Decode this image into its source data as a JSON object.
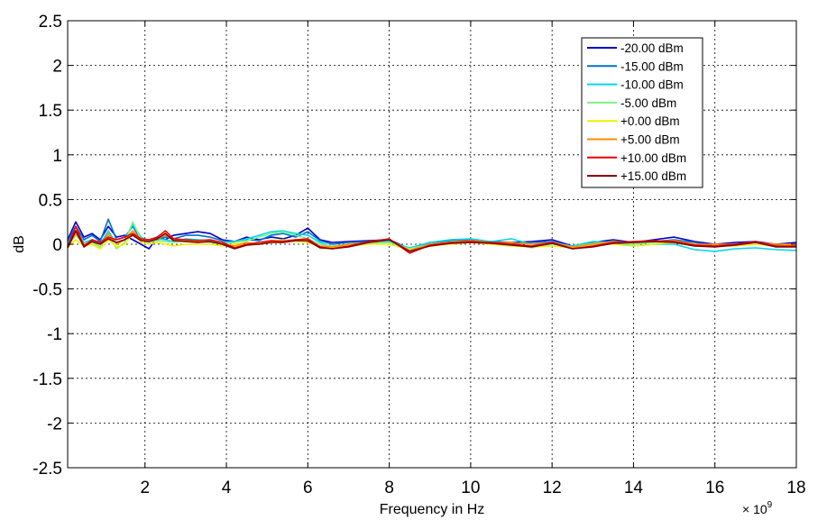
{
  "chart_data": {
    "type": "line",
    "xlabel": "Frequency in Hz",
    "ylabel": "dB",
    "x_multiplier_label": "× 10",
    "x_multiplier_exponent": "9",
    "xlim": [
      0.1,
      18
    ],
    "ylim": [
      -2.5,
      2.5
    ],
    "x_ticks": [
      2,
      4,
      6,
      8,
      10,
      12,
      14,
      16,
      18
    ],
    "x_tick_labels": [
      "2",
      "4",
      "6",
      "8",
      "10",
      "12",
      "14",
      "16",
      "18"
    ],
    "y_ticks": [
      2.5,
      2,
      1.5,
      1,
      0.5,
      0,
      -0.5,
      -1,
      -1.5,
      -2,
      -2.5
    ],
    "y_tick_labels": [
      "2.5",
      "2",
      "1.5",
      "1",
      "0.5",
      "0",
      "-0.5",
      "-1",
      "-1.5",
      "-2",
      "-2.5"
    ],
    "grid": true,
    "legend_position": "top-right",
    "series": [
      {
        "name": "-20.00 dBm",
        "color": "#0000cc",
        "x": [
          0.1,
          0.3,
          0.5,
          0.7,
          0.9,
          1.1,
          1.3,
          1.5,
          1.7,
          1.9,
          2.1,
          2.3,
          2.5,
          2.7,
          3.0,
          3.3,
          3.6,
          3.9,
          4.2,
          4.5,
          4.8,
          5.1,
          5.4,
          5.7,
          6.0,
          6.3,
          6.6,
          7.0,
          7.5,
          8.0,
          8.5,
          9.0,
          9.5,
          10.0,
          10.5,
          11.0,
          11.5,
          12.0,
          12.5,
          13.0,
          13.5,
          14.0,
          14.5,
          15.0,
          15.5,
          16.0,
          16.5,
          17.0,
          17.5,
          18.0
        ],
        "y": [
          0.05,
          0.25,
          0.08,
          0.12,
          0.05,
          0.2,
          0.08,
          0.1,
          0.05,
          0.0,
          -0.05,
          0.08,
          0.05,
          0.1,
          0.12,
          0.14,
          0.12,
          0.05,
          0.03,
          0.08,
          0.05,
          0.08,
          0.06,
          0.1,
          0.18,
          0.05,
          0.02,
          0.03,
          0.04,
          0.05,
          -0.05,
          0.02,
          0.04,
          0.05,
          0.03,
          0.02,
          0.03,
          0.05,
          -0.02,
          0.02,
          0.05,
          0.02,
          0.05,
          0.08,
          0.03,
          0.0,
          0.02,
          0.03,
          0.0,
          0.02
        ]
      },
      {
        "name": "-15.00 dBm",
        "color": "#0070d0",
        "x": [
          0.1,
          0.3,
          0.5,
          0.7,
          0.9,
          1.1,
          1.3,
          1.5,
          1.7,
          1.9,
          2.1,
          2.3,
          2.5,
          2.7,
          3.0,
          3.3,
          3.6,
          3.9,
          4.2,
          4.5,
          4.8,
          5.1,
          5.4,
          5.7,
          6.0,
          6.3,
          6.6,
          7.0,
          7.5,
          8.0,
          8.5,
          9.0,
          9.5,
          10.0,
          10.5,
          11.0,
          11.5,
          12.0,
          12.5,
          13.0,
          13.5,
          14.0,
          14.5,
          15.0,
          15.5,
          16.0,
          16.5,
          17.0,
          17.5,
          18.0
        ],
        "y": [
          0.03,
          0.2,
          0.05,
          0.1,
          0.03,
          0.28,
          0.05,
          0.08,
          0.2,
          0.05,
          0.02,
          0.05,
          0.08,
          0.06,
          0.1,
          0.1,
          0.08,
          0.04,
          0.02,
          0.05,
          0.04,
          0.1,
          0.12,
          0.08,
          0.14,
          0.04,
          0.0,
          0.02,
          0.03,
          0.04,
          -0.06,
          0.0,
          0.03,
          0.04,
          0.02,
          0.0,
          0.02,
          0.03,
          -0.03,
          0.0,
          0.04,
          0.0,
          0.03,
          0.05,
          0.02,
          -0.02,
          0.0,
          0.02,
          -0.01,
          0.0
        ]
      },
      {
        "name": "-10.00 dBm",
        "color": "#00d8f0",
        "x": [
          0.1,
          0.3,
          0.5,
          0.7,
          0.9,
          1.1,
          1.3,
          1.5,
          1.7,
          1.9,
          2.1,
          2.3,
          2.5,
          2.7,
          3.0,
          3.3,
          3.6,
          3.9,
          4.2,
          4.5,
          4.8,
          5.1,
          5.4,
          5.7,
          6.0,
          6.3,
          6.6,
          7.0,
          7.5,
          8.0,
          8.5,
          9.0,
          9.5,
          10.0,
          10.5,
          11.0,
          11.5,
          12.0,
          12.5,
          13.0,
          13.5,
          14.0,
          14.5,
          15.0,
          15.5,
          16.0,
          16.5,
          17.0,
          17.5,
          18.0
        ],
        "y": [
          0.0,
          0.15,
          0.02,
          0.05,
          0.0,
          0.15,
          0.0,
          0.05,
          0.22,
          0.08,
          0.03,
          0.06,
          0.05,
          0.03,
          0.06,
          0.05,
          0.04,
          0.02,
          0.03,
          0.06,
          0.1,
          0.14,
          0.15,
          0.12,
          0.1,
          0.02,
          -0.03,
          0.0,
          0.02,
          0.03,
          -0.04,
          0.02,
          0.05,
          0.06,
          0.03,
          0.06,
          0.0,
          0.02,
          -0.02,
          0.03,
          0.02,
          -0.02,
          0.0,
          0.0,
          -0.06,
          -0.08,
          -0.05,
          -0.04,
          -0.06,
          -0.07
        ]
      },
      {
        "name": "-5.00 dBm",
        "color": "#80f080",
        "x": [
          0.1,
          0.3,
          0.5,
          0.7,
          0.9,
          1.1,
          1.3,
          1.5,
          1.7,
          1.9,
          2.1,
          2.3,
          2.5,
          2.7,
          3.0,
          3.3,
          3.6,
          3.9,
          4.2,
          4.5,
          4.8,
          5.1,
          5.4,
          5.7,
          6.0,
          6.3,
          6.6,
          7.0,
          7.5,
          8.0,
          8.5,
          9.0,
          9.5,
          10.0,
          10.5,
          11.0,
          11.5,
          12.0,
          12.5,
          13.0,
          13.5,
          14.0,
          14.5,
          15.0,
          15.5,
          16.0,
          16.5,
          17.0,
          17.5,
          18.0
        ],
        "y": [
          -0.02,
          0.1,
          0.0,
          0.02,
          -0.03,
          0.1,
          -0.05,
          0.02,
          0.25,
          0.05,
          0.02,
          0.04,
          0.03,
          0.02,
          0.04,
          0.03,
          0.02,
          0.0,
          0.02,
          0.04,
          0.08,
          0.12,
          0.14,
          0.1,
          0.06,
          0.0,
          -0.02,
          0.0,
          0.01,
          0.02,
          -0.05,
          0.0,
          0.03,
          0.04,
          0.02,
          0.0,
          -0.04,
          0.0,
          -0.03,
          0.01,
          0.02,
          0.0,
          0.02,
          0.03,
          -0.01,
          -0.02,
          -0.01,
          0.0,
          -0.02,
          0.0
        ]
      },
      {
        "name": "+0.00 dBm",
        "color": "#f0f000",
        "x": [
          0.1,
          0.3,
          0.5,
          0.7,
          0.9,
          1.1,
          1.3,
          1.5,
          1.7,
          1.9,
          2.1,
          2.3,
          2.5,
          2.7,
          3.0,
          3.3,
          3.6,
          3.9,
          4.2,
          4.5,
          4.8,
          5.1,
          5.4,
          5.7,
          6.0,
          6.3,
          6.6,
          7.0,
          7.5,
          8.0,
          8.5,
          9.0,
          9.5,
          10.0,
          10.5,
          11.0,
          11.5,
          12.0,
          12.5,
          13.0,
          13.5,
          14.0,
          14.5,
          15.0,
          15.5,
          16.0,
          16.5,
          17.0,
          17.5,
          18.0
        ],
        "y": [
          -0.03,
          0.05,
          -0.02,
          0.0,
          -0.05,
          0.05,
          -0.03,
          0.0,
          0.12,
          0.02,
          0.0,
          0.02,
          0.0,
          -0.02,
          0.0,
          0.0,
          0.0,
          -0.02,
          0.0,
          0.02,
          0.0,
          0.04,
          0.05,
          0.03,
          0.02,
          -0.03,
          -0.04,
          -0.02,
          0.0,
          0.0,
          -0.06,
          -0.02,
          0.0,
          0.02,
          0.0,
          -0.02,
          -0.03,
          -0.02,
          -0.04,
          0.0,
          0.0,
          -0.02,
          0.0,
          0.02,
          -0.02,
          -0.02,
          -0.02,
          0.0,
          -0.02,
          -0.01
        ]
      },
      {
        "name": "+5.00 dBm",
        "color": "#ff8c00",
        "x": [
          0.1,
          0.3,
          0.5,
          0.7,
          0.9,
          1.1,
          1.3,
          1.5,
          1.7,
          1.9,
          2.1,
          2.3,
          2.5,
          2.7,
          3.0,
          3.3,
          3.6,
          3.9,
          4.2,
          4.5,
          4.8,
          5.1,
          5.4,
          5.7,
          6.0,
          6.3,
          6.6,
          7.0,
          7.5,
          8.0,
          8.5,
          9.0,
          9.5,
          10.0,
          10.5,
          11.0,
          11.5,
          12.0,
          12.5,
          13.0,
          13.5,
          14.0,
          14.5,
          15.0,
          15.5,
          16.0,
          16.5,
          17.0,
          17.5,
          18.0
        ],
        "y": [
          -0.02,
          0.12,
          0.0,
          0.03,
          0.0,
          0.12,
          0.0,
          0.05,
          0.15,
          0.05,
          0.05,
          0.06,
          0.1,
          0.05,
          0.03,
          0.02,
          0.03,
          0.0,
          -0.02,
          0.02,
          0.0,
          0.03,
          0.04,
          0.05,
          0.03,
          -0.02,
          -0.03,
          0.0,
          0.02,
          0.05,
          -0.07,
          0.0,
          0.02,
          0.04,
          0.02,
          0.02,
          0.0,
          0.02,
          -0.03,
          0.0,
          0.03,
          0.02,
          0.03,
          0.04,
          0.0,
          0.0,
          0.0,
          0.02,
          0.0,
          0.0
        ]
      },
      {
        "name": "+10.00 dBm",
        "color": "#f00000",
        "x": [
          0.1,
          0.3,
          0.5,
          0.7,
          0.9,
          1.1,
          1.3,
          1.5,
          1.7,
          1.9,
          2.1,
          2.3,
          2.5,
          2.7,
          3.0,
          3.3,
          3.6,
          3.9,
          4.2,
          4.5,
          4.8,
          5.1,
          5.4,
          5.7,
          6.0,
          6.3,
          6.6,
          7.0,
          7.5,
          8.0,
          8.5,
          9.0,
          9.5,
          10.0,
          10.5,
          11.0,
          11.5,
          12.0,
          12.5,
          13.0,
          13.5,
          14.0,
          14.5,
          15.0,
          15.5,
          16.0,
          16.5,
          17.0,
          17.5,
          18.0
        ],
        "y": [
          -0.03,
          0.2,
          -0.02,
          0.05,
          0.02,
          0.08,
          0.05,
          0.08,
          0.12,
          0.06,
          0.05,
          0.08,
          0.15,
          0.06,
          0.05,
          0.04,
          0.05,
          0.02,
          -0.04,
          0.0,
          0.02,
          0.04,
          0.03,
          0.05,
          0.06,
          -0.03,
          -0.05,
          -0.02,
          0.03,
          0.06,
          -0.1,
          -0.01,
          0.02,
          0.03,
          0.02,
          0.0,
          -0.02,
          0.02,
          -0.05,
          -0.02,
          0.02,
          0.03,
          0.04,
          0.03,
          -0.01,
          -0.02,
          0.0,
          0.03,
          -0.02,
          -0.02
        ]
      },
      {
        "name": "+15.00 dBm",
        "color": "#800000",
        "x": [
          0.1,
          0.3,
          0.5,
          0.7,
          0.9,
          1.1,
          1.3,
          1.5,
          1.7,
          1.9,
          2.1,
          2.3,
          2.5,
          2.7,
          3.0,
          3.3,
          3.6,
          3.9,
          4.2,
          4.5,
          4.8,
          5.1,
          5.4,
          5.7,
          6.0,
          6.3,
          6.6,
          7.0,
          7.5,
          8.0,
          8.5,
          9.0,
          9.5,
          10.0,
          10.5,
          11.0,
          11.5,
          12.0,
          12.5,
          13.0,
          13.5,
          14.0,
          14.5,
          15.0,
          15.5,
          16.0,
          16.5,
          17.0,
          17.5,
          18.0
        ],
        "y": [
          -0.04,
          0.15,
          -0.03,
          0.03,
          0.0,
          0.06,
          0.02,
          0.05,
          0.1,
          0.04,
          0.03,
          0.06,
          0.12,
          0.04,
          0.03,
          0.02,
          0.03,
          0.0,
          -0.05,
          -0.01,
          0.0,
          0.02,
          0.02,
          0.04,
          0.04,
          -0.04,
          -0.05,
          -0.03,
          0.02,
          0.05,
          -0.08,
          -0.02,
          0.01,
          0.02,
          0.01,
          -0.01,
          -0.03,
          0.01,
          -0.05,
          -0.03,
          0.01,
          0.02,
          0.03,
          0.02,
          -0.02,
          -0.03,
          -0.01,
          0.02,
          -0.03,
          -0.03
        ]
      }
    ]
  }
}
